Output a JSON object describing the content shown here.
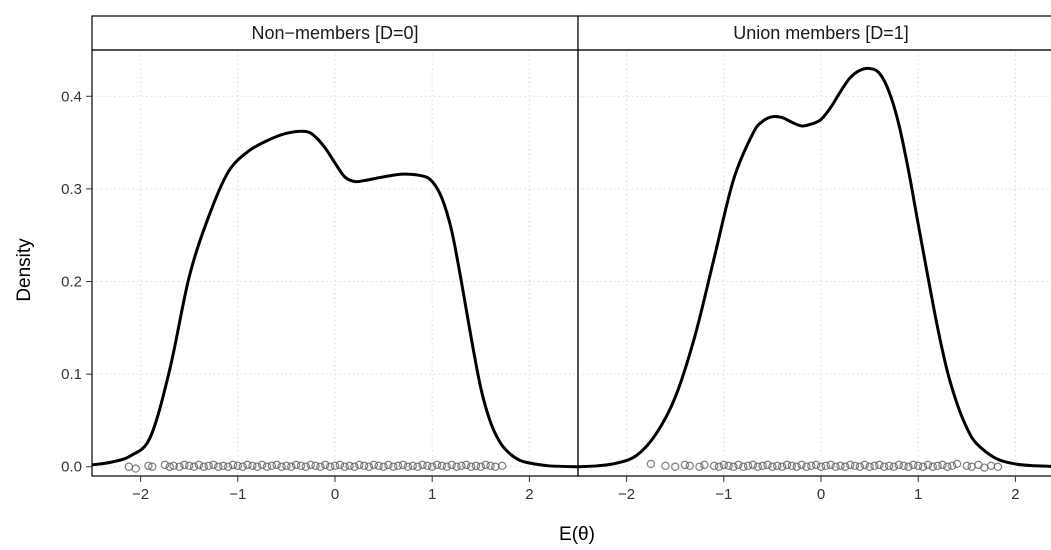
{
  "chart_data": {
    "type": "line",
    "subtype": "density with rug (faceted)",
    "xlabel": "E(θ)",
    "ylabel": "Density",
    "xlim": [
      -2.5,
      2.5
    ],
    "ylim": [
      -0.01,
      0.45
    ],
    "x_ticks": [
      -2,
      -1,
      0,
      1,
      2
    ],
    "x_tick_labels": [
      "−2",
      "−1",
      "0",
      "1",
      "2"
    ],
    "y_ticks": [
      0.0,
      0.1,
      0.2,
      0.3,
      0.4
    ],
    "y_tick_labels": [
      "0.0",
      "0.1",
      "0.2",
      "0.3",
      "0.4"
    ],
    "grid": true,
    "legend": "none",
    "facets": [
      {
        "label": "Non−members [D=0]",
        "curve": {
          "x": [
            -2.5,
            -2.3,
            -2.1,
            -1.9,
            -1.7,
            -1.5,
            -1.3,
            -1.1,
            -0.9,
            -0.7,
            -0.5,
            -0.3,
            -0.2,
            -0.1,
            0.0,
            0.1,
            0.2,
            0.3,
            0.5,
            0.7,
            0.9,
            1.0,
            1.1,
            1.2,
            1.3,
            1.4,
            1.5,
            1.6,
            1.7,
            1.8,
            1.9,
            2.0,
            2.2,
            2.5
          ],
          "y": [
            0.002,
            0.005,
            0.012,
            0.032,
            0.105,
            0.205,
            0.27,
            0.318,
            0.34,
            0.352,
            0.36,
            0.362,
            0.356,
            0.344,
            0.328,
            0.313,
            0.308,
            0.309,
            0.313,
            0.316,
            0.314,
            0.308,
            0.29,
            0.255,
            0.2,
            0.14,
            0.085,
            0.048,
            0.026,
            0.014,
            0.007,
            0.004,
            0.001,
            0.0
          ]
        },
        "rug": {
          "x": [
            -2.12,
            -2.05,
            -1.92,
            -1.88,
            -1.75,
            -1.7,
            -1.66,
            -1.6,
            -1.55,
            -1.5,
            -1.45,
            -1.4,
            -1.35,
            -1.3,
            -1.25,
            -1.2,
            -1.15,
            -1.1,
            -1.05,
            -1.0,
            -0.95,
            -0.9,
            -0.85,
            -0.8,
            -0.75,
            -0.7,
            -0.65,
            -0.6,
            -0.55,
            -0.5,
            -0.45,
            -0.4,
            -0.35,
            -0.3,
            -0.25,
            -0.2,
            -0.15,
            -0.1,
            -0.05,
            0.0,
            0.05,
            0.1,
            0.15,
            0.2,
            0.25,
            0.3,
            0.35,
            0.4,
            0.45,
            0.5,
            0.55,
            0.6,
            0.65,
            0.7,
            0.75,
            0.8,
            0.85,
            0.9,
            0.95,
            1.0,
            1.05,
            1.1,
            1.15,
            1.2,
            1.25,
            1.3,
            1.35,
            1.4,
            1.45,
            1.5,
            1.55,
            1.6,
            1.65,
            1.72
          ],
          "y": [
            0.0,
            -0.002,
            0.001,
            0.0,
            0.002,
            0.0,
            0.001,
            0.0,
            0.002,
            0.001,
            0.0,
            0.002,
            0.0,
            0.001,
            0.002,
            0.0,
            0.001,
            0.0,
            0.002,
            0.001,
            0.0,
            0.002,
            0.001,
            0.0,
            0.002,
            0.0,
            0.001,
            0.002,
            0.0,
            0.001,
            0.0,
            0.002,
            0.001,
            0.0,
            0.002,
            0.001,
            0.0,
            0.002,
            0.0,
            0.001,
            0.002,
            0.0,
            0.001,
            0.0,
            0.002,
            0.001,
            0.0,
            0.002,
            0.001,
            0.0,
            0.002,
            0.0,
            0.001,
            0.002,
            0.0,
            0.001,
            0.0,
            0.002,
            0.001,
            0.0,
            0.002,
            0.001,
            0.0,
            0.002,
            0.0,
            0.001,
            0.002,
            0.0,
            0.001,
            0.0,
            0.002,
            0.001,
            0.0,
            0.001
          ]
        }
      },
      {
        "label": "Union members [D=1]",
        "curve": {
          "x": [
            -2.5,
            -2.3,
            -2.1,
            -1.9,
            -1.7,
            -1.5,
            -1.3,
            -1.1,
            -0.9,
            -0.7,
            -0.6,
            -0.5,
            -0.4,
            -0.3,
            -0.2,
            -0.1,
            0.0,
            0.1,
            0.2,
            0.3,
            0.4,
            0.5,
            0.6,
            0.7,
            0.8,
            0.9,
            1.0,
            1.1,
            1.2,
            1.3,
            1.4,
            1.5,
            1.6,
            1.8,
            2.0,
            2.2,
            2.5
          ],
          "y": [
            0.0,
            0.001,
            0.004,
            0.012,
            0.035,
            0.075,
            0.14,
            0.225,
            0.31,
            0.36,
            0.373,
            0.378,
            0.377,
            0.372,
            0.368,
            0.37,
            0.375,
            0.388,
            0.405,
            0.42,
            0.428,
            0.43,
            0.425,
            0.405,
            0.37,
            0.32,
            0.262,
            0.205,
            0.15,
            0.103,
            0.068,
            0.042,
            0.025,
            0.009,
            0.003,
            0.001,
            0.0
          ]
        },
        "rug": {
          "x": [
            -1.75,
            -1.6,
            -1.5,
            -1.4,
            -1.35,
            -1.25,
            -1.2,
            -1.1,
            -1.05,
            -1.0,
            -0.95,
            -0.9,
            -0.85,
            -0.8,
            -0.75,
            -0.7,
            -0.65,
            -0.6,
            -0.55,
            -0.5,
            -0.45,
            -0.4,
            -0.35,
            -0.3,
            -0.25,
            -0.2,
            -0.15,
            -0.1,
            -0.05,
            0.0,
            0.05,
            0.1,
            0.15,
            0.2,
            0.25,
            0.3,
            0.35,
            0.4,
            0.45,
            0.5,
            0.55,
            0.6,
            0.65,
            0.7,
            0.75,
            0.8,
            0.85,
            0.9,
            0.95,
            1.0,
            1.05,
            1.1,
            1.15,
            1.2,
            1.25,
            1.3,
            1.35,
            1.4,
            1.5,
            1.55,
            1.62,
            1.68,
            1.75,
            1.82
          ],
          "y": [
            0.003,
            0.001,
            0.0,
            0.002,
            0.001,
            0.0,
            0.002,
            0.001,
            0.0,
            0.002,
            0.001,
            0.0,
            0.002,
            0.0,
            0.001,
            0.002,
            0.0,
            0.001,
            0.002,
            0.0,
            0.001,
            0.0,
            0.002,
            0.001,
            0.0,
            0.002,
            0.0,
            0.001,
            0.002,
            0.0,
            0.001,
            0.002,
            0.0,
            0.001,
            0.0,
            0.002,
            0.001,
            0.0,
            0.002,
            0.0,
            0.001,
            0.002,
            0.0,
            0.001,
            0.0,
            0.002,
            0.001,
            0.0,
            0.002,
            0.001,
            0.0,
            0.002,
            0.0,
            0.001,
            0.002,
            0.0,
            0.001,
            0.003,
            0.001,
            0.0,
            0.002,
            -0.001,
            0.001,
            0.0
          ]
        }
      }
    ]
  }
}
